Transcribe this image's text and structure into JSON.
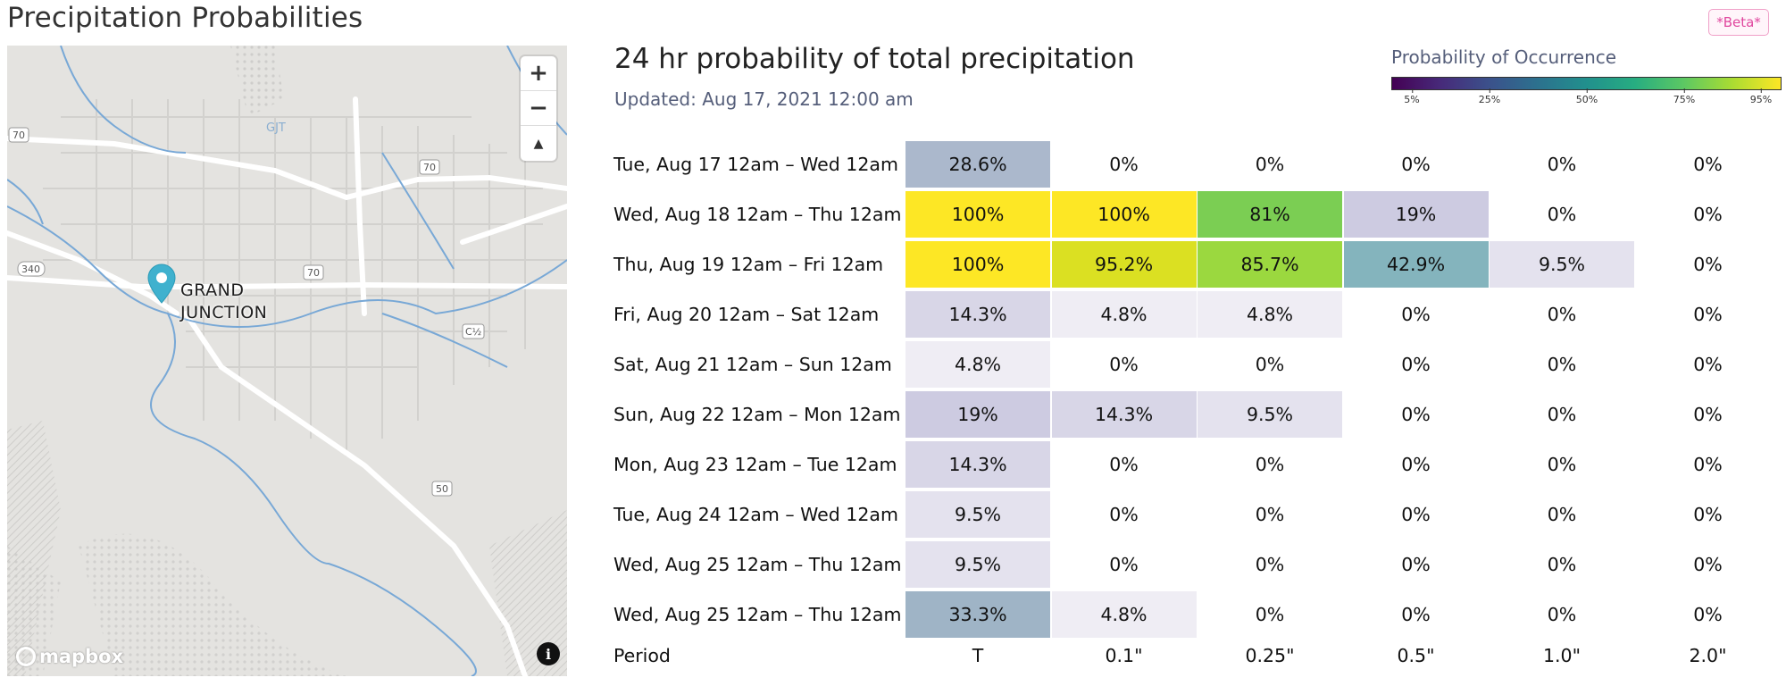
{
  "page_title": "Precipitation Probabilities",
  "beta_label": "*Beta*",
  "map": {
    "zoom_in_label": "+",
    "zoom_out_label": "−",
    "compass_label": "▲",
    "city_line1": "GRAND",
    "city_line2": "JUNCTION",
    "logo_text": "mapbox",
    "info_label": "i",
    "road_labels": [
      "70",
      "70",
      "70",
      "340",
      "50",
      "GJT",
      "C½"
    ]
  },
  "chart": {
    "title": "24 hr probability of total precipitation",
    "updated": "Updated: Aug 17, 2021 12:00 am"
  },
  "legend": {
    "title": "Probability of Occurrence",
    "ticks": [
      "5%",
      "25%",
      "50%",
      "75%",
      "95%"
    ],
    "colors": [
      "#440154",
      "#3b528b",
      "#21918c",
      "#5ec962",
      "#fde725"
    ]
  },
  "table": {
    "footer_label": "Period",
    "columns": [
      "T",
      "0.1\"",
      "0.25\"",
      "0.5\"",
      "1.0\"",
      "2.0\""
    ],
    "rows": [
      {
        "period": "Tue, Aug 17 12am – Wed 12am",
        "values": [
          "28.6%",
          "0%",
          "0%",
          "0%",
          "0%",
          "0%"
        ],
        "colors": [
          "#abb8cc",
          "",
          "",
          "",
          "",
          ""
        ]
      },
      {
        "period": "Wed, Aug 18 12am – Thu 12am",
        "values": [
          "100%",
          "100%",
          "81%",
          "19%",
          "0%",
          "0%"
        ],
        "colors": [
          "#fde725",
          "#fde725",
          "#7bce53",
          "#cdcbe1",
          "",
          ""
        ]
      },
      {
        "period": "Thu, Aug 19 12am – Fri 12am",
        "values": [
          "100%",
          "95.2%",
          "85.7%",
          "42.9%",
          "9.5%",
          "0%"
        ],
        "colors": [
          "#fde725",
          "#dbe022",
          "#9bd83f",
          "#84b4bd",
          "#e4e2ee",
          ""
        ]
      },
      {
        "period": "Fri, Aug 20 12am – Sat 12am",
        "values": [
          "14.3%",
          "4.8%",
          "4.8%",
          "0%",
          "0%",
          "0%"
        ],
        "colors": [
          "#d8d6e7",
          "#efedf4",
          "#efedf4",
          "",
          "",
          ""
        ]
      },
      {
        "period": "Sat, Aug 21 12am – Sun 12am",
        "values": [
          "4.8%",
          "0%",
          "0%",
          "0%",
          "0%",
          "0%"
        ],
        "colors": [
          "#efedf4",
          "",
          "",
          "",
          "",
          ""
        ]
      },
      {
        "period": "Sun, Aug 22 12am – Mon 12am",
        "values": [
          "19%",
          "14.3%",
          "9.5%",
          "0%",
          "0%",
          "0%"
        ],
        "colors": [
          "#cdcbe1",
          "#d8d6e7",
          "#e4e2ee",
          "",
          "",
          ""
        ]
      },
      {
        "period": "Mon, Aug 23 12am – Tue 12am",
        "values": [
          "14.3%",
          "0%",
          "0%",
          "0%",
          "0%",
          "0%"
        ],
        "colors": [
          "#d8d6e7",
          "",
          "",
          "",
          "",
          ""
        ]
      },
      {
        "period": "Tue, Aug 24 12am – Wed 12am",
        "values": [
          "9.5%",
          "0%",
          "0%",
          "0%",
          "0%",
          "0%"
        ],
        "colors": [
          "#e4e2ee",
          "",
          "",
          "",
          "",
          ""
        ]
      },
      {
        "period": "Wed, Aug 25 12am – Thu 12am",
        "values": [
          "9.5%",
          "0%",
          "0%",
          "0%",
          "0%",
          "0%"
        ],
        "colors": [
          "#e4e2ee",
          "",
          "",
          "",
          "",
          ""
        ]
      },
      {
        "period": "Wed, Aug 25 12am – Thu 12am",
        "values": [
          "33.3%",
          "4.8%",
          "0%",
          "0%",
          "0%",
          "0%"
        ],
        "colors": [
          "#9fb4c6",
          "#efedf4",
          "",
          "",
          "",
          ""
        ]
      }
    ]
  }
}
